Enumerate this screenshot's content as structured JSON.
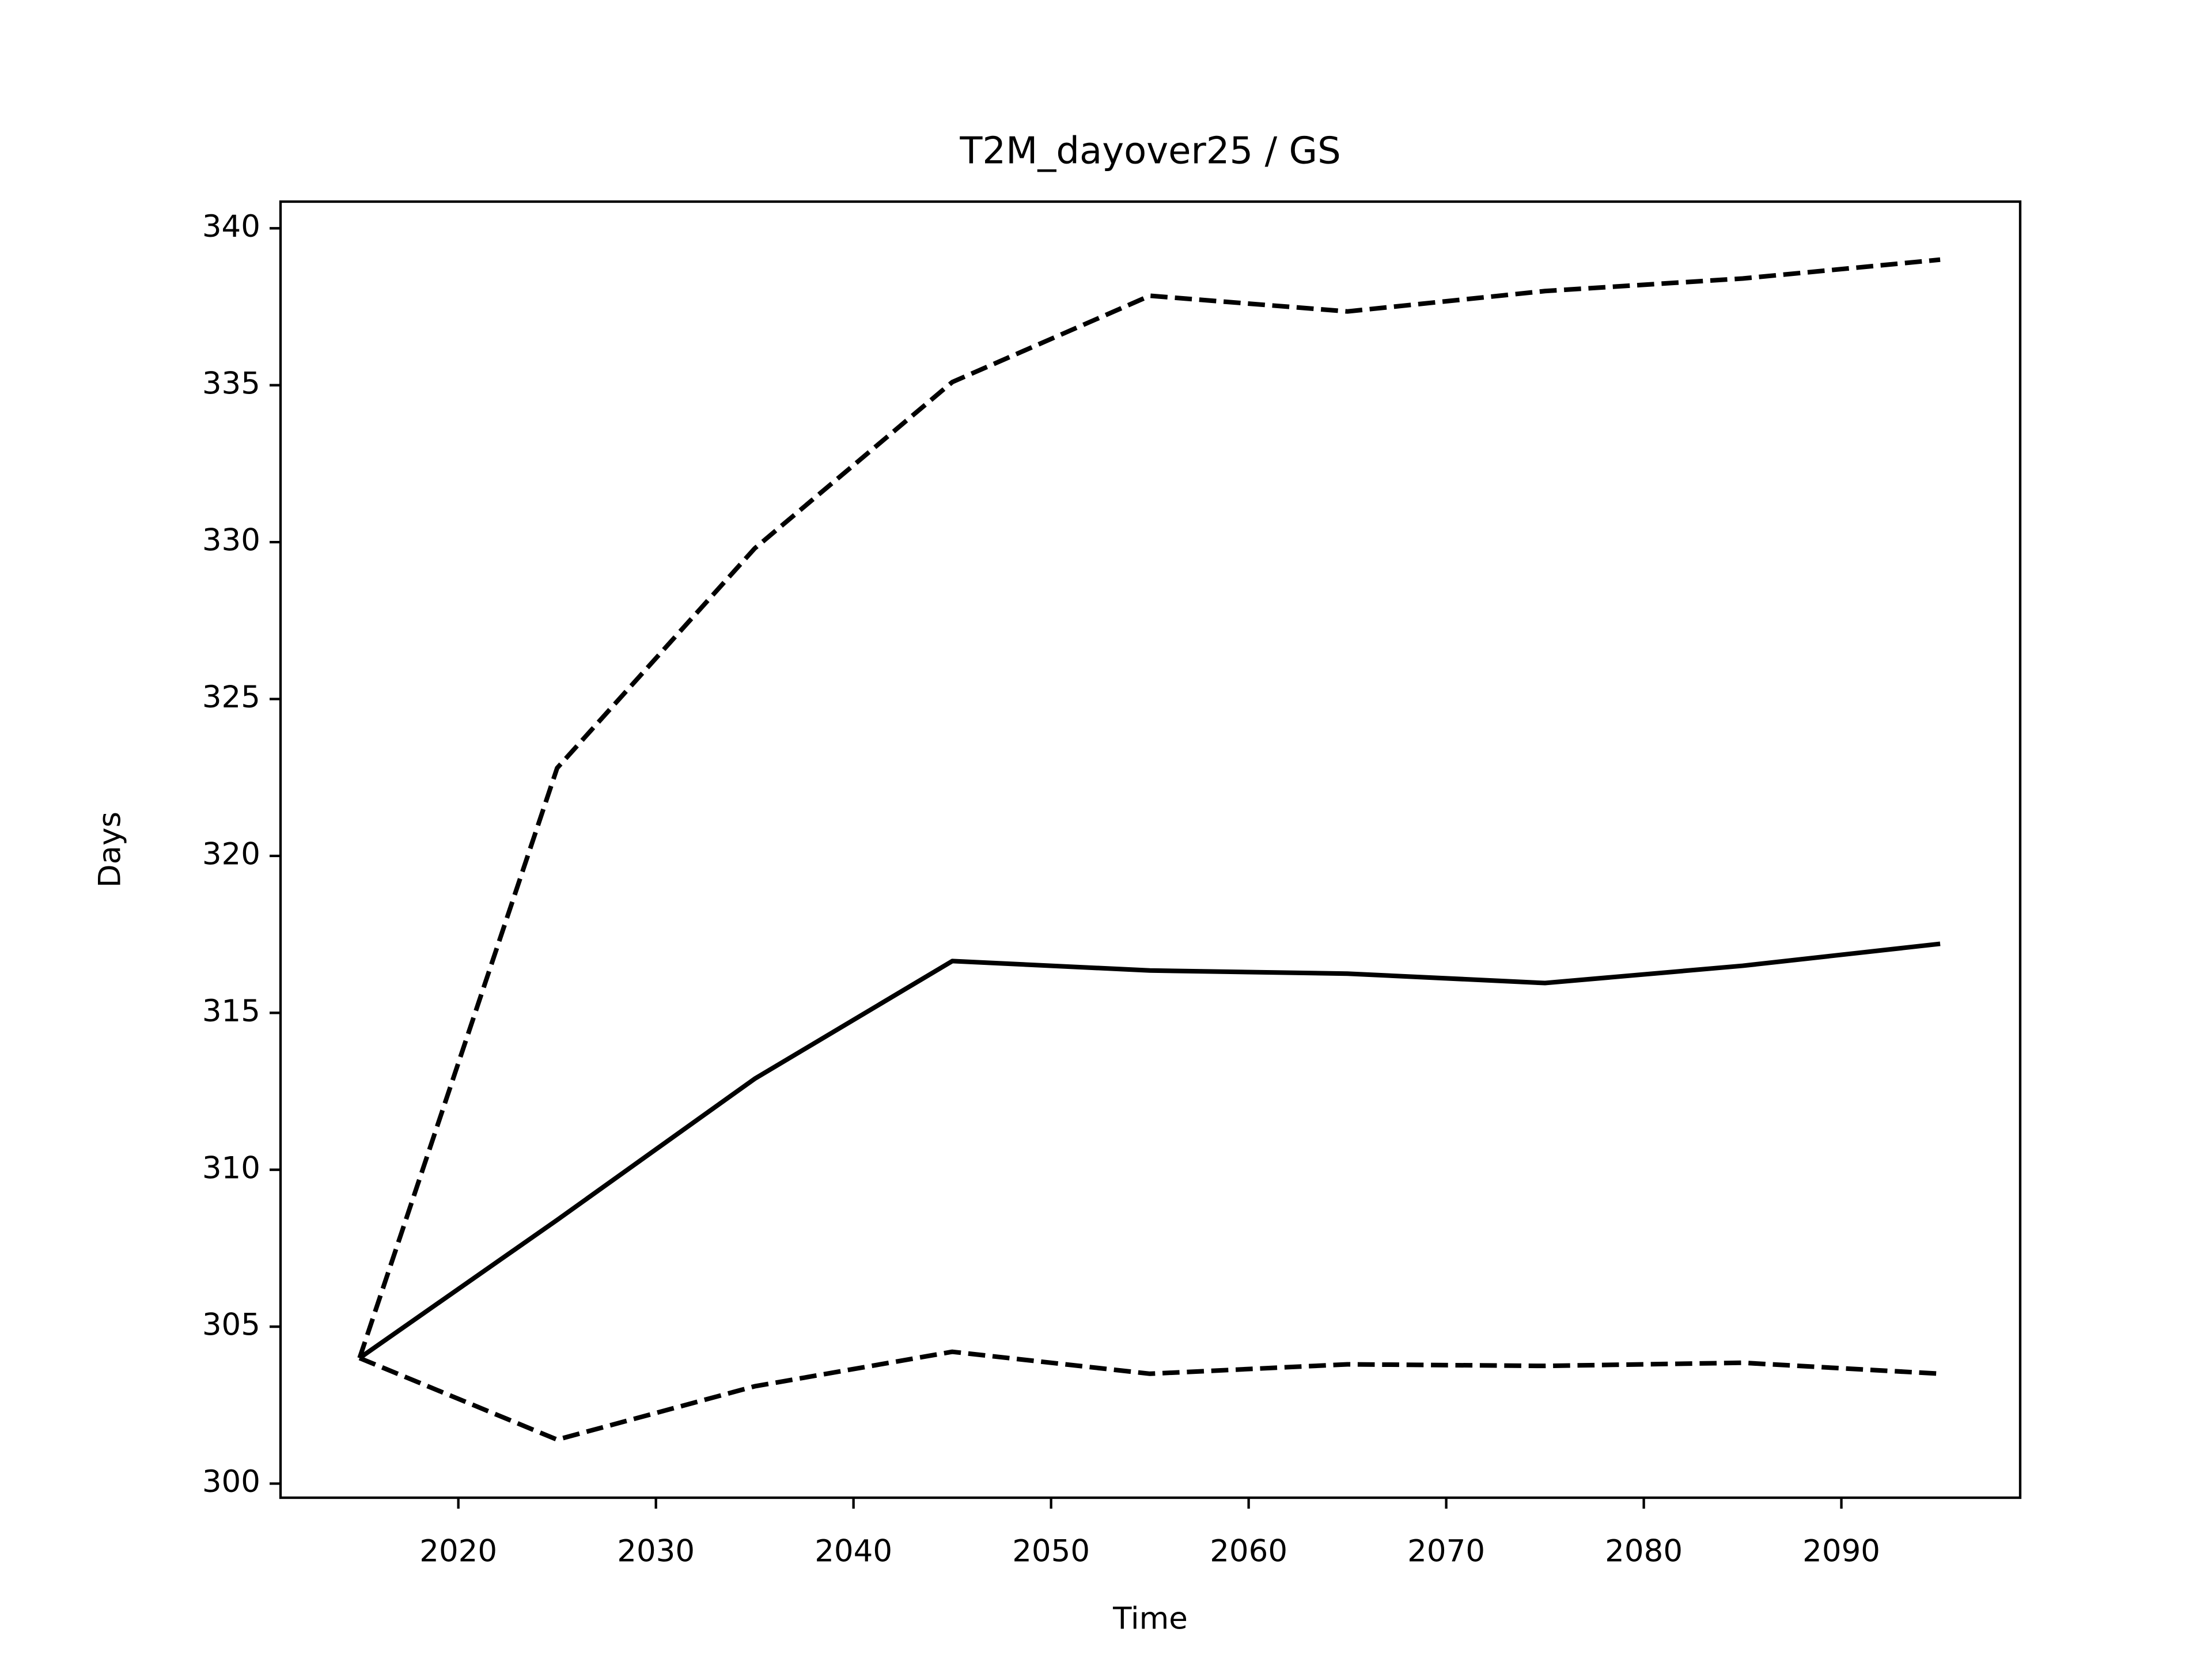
{
  "chart_data": {
    "type": "line",
    "title": "T2M_dayover25 / GS",
    "xlabel": "Time",
    "ylabel": "Days",
    "x": [
      2015,
      2025,
      2035,
      2045,
      2055,
      2065,
      2075,
      2085,
      2095
    ],
    "series": [
      {
        "color": "#000000",
        "linestyle": "dashed",
        "values": [
          304.0,
          322.8,
          329.8,
          335.1,
          337.85,
          337.35,
          338.0,
          338.4,
          339.0
        ]
      },
      {
        "color": "#000000",
        "linestyle": "solid",
        "values": [
          304.0,
          308.4,
          312.9,
          316.65,
          316.35,
          316.25,
          315.95,
          316.5,
          317.2
        ]
      },
      {
        "color": "#000000",
        "linestyle": "dashed",
        "values": [
          304.0,
          301.4,
          303.1,
          304.2,
          303.5,
          303.8,
          303.75,
          303.85,
          303.5
        ]
      }
    ],
    "xlim": [
      2011.0,
      2099.05
    ],
    "xticks": [
      2020,
      2030,
      2040,
      2050,
      2060,
      2070,
      2080,
      2090
    ],
    "ylim": [
      299.55,
      340.85
    ],
    "yticks": [
      300,
      305,
      310,
      315,
      320,
      325,
      330,
      335,
      340
    ],
    "grid": false
  }
}
